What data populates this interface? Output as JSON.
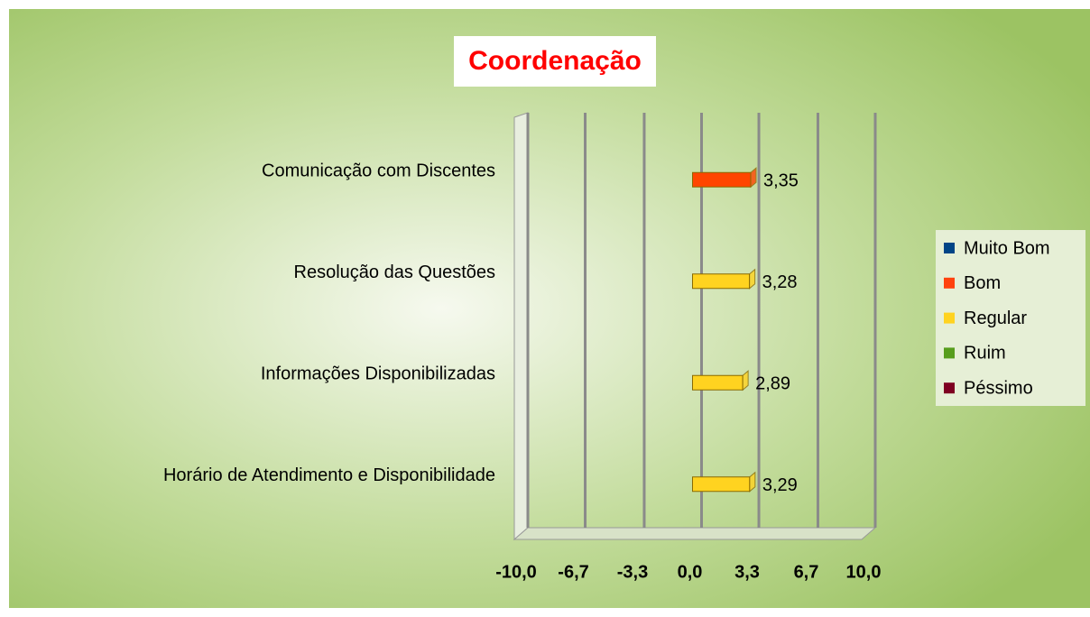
{
  "chart_data": {
    "type": "hbar",
    "title": "Coordenação",
    "categories": [
      "Comunicação com Discentes",
      "Resolução das Questões",
      "Informações Disponibilizadas",
      "Horário de Atendimento e Disponibilidade"
    ],
    "values": [
      3.35,
      3.28,
      2.89,
      3.29
    ],
    "value_labels": [
      "3,35",
      "3,28",
      "2,89",
      "3,29"
    ],
    "colors": [
      "#ff4500",
      "#ffd320",
      "#ffd320",
      "#ffd320"
    ],
    "xlim": [
      -10,
      10
    ],
    "xticks": [
      {
        "value": -10,
        "label": "-10,0"
      },
      {
        "value": -6.7,
        "label": "-6,7"
      },
      {
        "value": -3.3,
        "label": "-3,3"
      },
      {
        "value": 0,
        "label": "0,0"
      },
      {
        "value": 3.3,
        "label": "3,3"
      },
      {
        "value": 6.7,
        "label": "6,7"
      },
      {
        "value": 10,
        "label": "10,0"
      }
    ],
    "grid": true,
    "legend_position": "right",
    "legend": [
      {
        "name": "Muito Bom",
        "color": "#004586"
      },
      {
        "name": "Bom",
        "color": "#ff420e"
      },
      {
        "name": "Regular",
        "color": "#ffd320"
      },
      {
        "name": "Ruim",
        "color": "#579d1c"
      },
      {
        "name": "Péssimo",
        "color": "#7e0021"
      }
    ]
  }
}
